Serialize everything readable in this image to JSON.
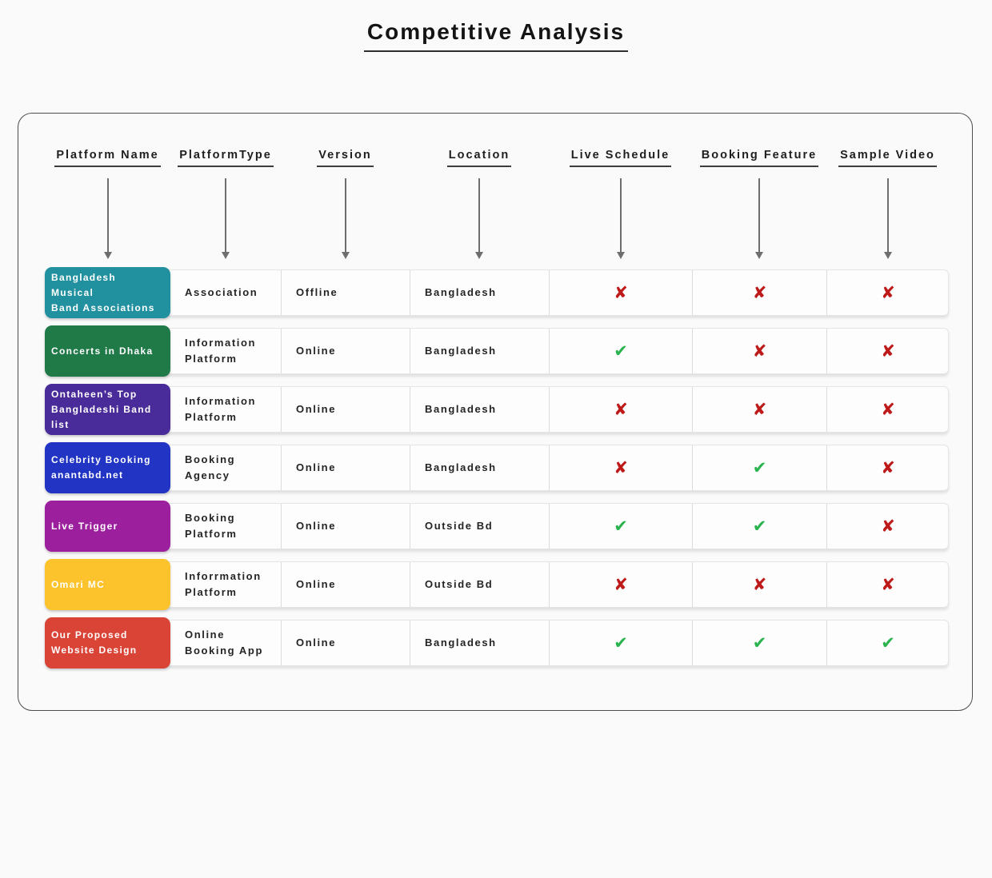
{
  "title": "Competitive Analysis",
  "columns": [
    "Platform Name",
    "PlatformType",
    "Version",
    "Location",
    "Live Schedule",
    "Booking Feature",
    "Sample Video"
  ],
  "marks": {
    "yes_glyph": "✔",
    "no_glyph": "✘",
    "yes_color": "#29b34c",
    "no_color": "#be1a1a"
  },
  "rows": [
    {
      "platform_name": "Bangladesh\nMusical\nBand Associations",
      "badge_color": "#2191a0",
      "platform_type": "Association",
      "version": "Offline",
      "location": "Bangladesh",
      "live_schedule": false,
      "booking_feature": false,
      "sample_video": false
    },
    {
      "platform_name": "Concerts in Dhaka",
      "badge_color": "#1f7a48",
      "platform_type": "Information\nPlatform",
      "version": "Online",
      "location": "Bangladesh",
      "live_schedule": true,
      "booking_feature": false,
      "sample_video": false
    },
    {
      "platform_name": "Ontaheen’s Top\nBangladeshi Band\nlist",
      "badge_color": "#4a2b9a",
      "platform_type": "Information\nPlatform",
      "version": "Online",
      "location": "Bangladesh",
      "live_schedule": false,
      "booking_feature": false,
      "sample_video": false
    },
    {
      "platform_name": "Celebrity Booking\nanantabd.net",
      "badge_color": "#2134c4",
      "platform_type": "Booking\nAgency",
      "version": "Online",
      "location": "Bangladesh",
      "live_schedule": false,
      "booking_feature": true,
      "sample_video": false
    },
    {
      "platform_name": "Live Trigger",
      "badge_color": "#9c209e",
      "platform_type": "Booking\nPlatform",
      "version": "Online",
      "location": "Outside Bd",
      "live_schedule": true,
      "booking_feature": true,
      "sample_video": false
    },
    {
      "platform_name": "Omari MC",
      "badge_color": "#fcc32d",
      "platform_type": "Inforrmation\nPlatform",
      "version": "Online",
      "location": "Outside Bd",
      "live_schedule": false,
      "booking_feature": false,
      "sample_video": false
    },
    {
      "platform_name": "Our Proposed\nWebsite Design",
      "badge_color": "#da4437",
      "platform_type": "Online\nBooking App",
      "version": "Online",
      "location": "Bangladesh",
      "live_schedule": true,
      "booking_feature": true,
      "sample_video": true
    }
  ]
}
